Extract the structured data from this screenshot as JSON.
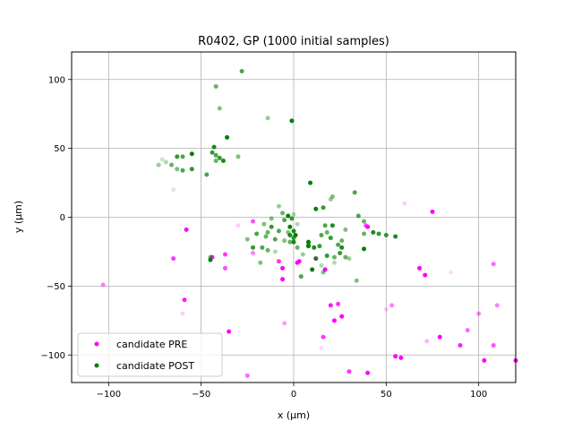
{
  "chart_data": {
    "type": "scatter",
    "title": "R0402, GP (1000 initial samples)",
    "xlabel": "x (µm)",
    "ylabel": "y (µm)",
    "xlim": [
      -120,
      120
    ],
    "ylim": [
      -120,
      120
    ],
    "xticks": [
      -100,
      -50,
      0,
      50,
      100
    ],
    "yticks": [
      -100,
      -50,
      0,
      50,
      100
    ],
    "xtick_labels": [
      "−100",
      "−50",
      "0",
      "50",
      "100"
    ],
    "ytick_labels": [
      "−100",
      "−50",
      "0",
      "50",
      "100"
    ],
    "grid": true,
    "legend": {
      "placement": "bottom-left"
    },
    "series": [
      {
        "name": "candidate PRE",
        "color": "#ff00ff",
        "points": [
          [
            -103,
            -49,
            0.5
          ],
          [
            -65,
            -30,
            0.8
          ],
          [
            -58,
            -9,
            1.0
          ],
          [
            -59,
            -60,
            0.9
          ],
          [
            -44,
            -29,
            0.9
          ],
          [
            -37,
            -27,
            0.8
          ],
          [
            -37,
            -37,
            0.7
          ],
          [
            -35,
            -83,
            1.0
          ],
          [
            -22,
            -3,
            0.7
          ],
          [
            -25,
            -115,
            0.6
          ],
          [
            -22,
            -26,
            0.5
          ],
          [
            -8,
            -32,
            0.8
          ],
          [
            -6,
            -45,
            1.0
          ],
          [
            -6,
            -37,
            1.0
          ],
          [
            -5,
            -77,
            0.4
          ],
          [
            2,
            -33,
            1.0
          ],
          [
            3,
            -32,
            1.0
          ],
          [
            12,
            -30,
            0.9
          ],
          [
            16,
            -87,
            0.8
          ],
          [
            17,
            -38,
            1.0
          ],
          [
            20,
            -64,
            0.9
          ],
          [
            22,
            -75,
            1.0
          ],
          [
            24,
            -63,
            0.8
          ],
          [
            26,
            -72,
            1.0
          ],
          [
            30,
            -112,
            0.8
          ],
          [
            39,
            -6,
            0.7
          ],
          [
            40,
            -7,
            1.0
          ],
          [
            40,
            -113,
            1.0
          ],
          [
            53,
            -64,
            0.5
          ],
          [
            55,
            -101,
            1.0
          ],
          [
            58,
            -102,
            1.0
          ],
          [
            68,
            -37,
            1.0
          ],
          [
            71,
            -42,
            1.0
          ],
          [
            72,
            -90,
            0.3
          ],
          [
            75,
            4,
            1.0
          ],
          [
            79,
            -87,
            1.0
          ],
          [
            90,
            -93,
            0.9
          ],
          [
            94,
            -82,
            0.6
          ],
          [
            100,
            -70,
            0.5
          ],
          [
            103,
            -104,
            1.0
          ],
          [
            108,
            -34,
            0.6
          ],
          [
            108,
            -93,
            0.7
          ],
          [
            110,
            -64,
            0.5
          ],
          [
            120,
            -104,
            1.0
          ],
          [
            -30,
            -6,
            0.2
          ],
          [
            50,
            -67,
            0.2
          ],
          [
            60,
            10,
            0.2
          ],
          [
            -60,
            -70,
            0.2
          ],
          [
            85,
            -40,
            0.15
          ],
          [
            15,
            -95,
            0.15
          ]
        ]
      },
      {
        "name": "candidate POST",
        "color": "#008000",
        "points": [
          [
            -28,
            106,
            0.7
          ],
          [
            -42,
            95,
            0.6
          ],
          [
            -40,
            79,
            0.5
          ],
          [
            -14,
            72,
            0.4
          ],
          [
            -1,
            70,
            1.0
          ],
          [
            -36,
            58,
            1.0
          ],
          [
            -43,
            51,
            0.9
          ],
          [
            -44,
            47,
            0.8
          ],
          [
            -42,
            45,
            0.7
          ],
          [
            -40,
            43,
            0.8
          ],
          [
            -38,
            41,
            0.9
          ],
          [
            -42,
            41,
            0.6
          ],
          [
            -55,
            46,
            1.0
          ],
          [
            -63,
            44,
            0.8
          ],
          [
            -60,
            44,
            0.7
          ],
          [
            -66,
            38,
            0.6
          ],
          [
            -63,
            35,
            0.5
          ],
          [
            -60,
            34,
            0.7
          ],
          [
            -55,
            35,
            0.8
          ],
          [
            -47,
            31,
            0.7
          ],
          [
            -30,
            44,
            0.5
          ],
          [
            -71,
            42,
            0.2
          ],
          [
            -73,
            38,
            0.4
          ],
          [
            -69,
            40,
            0.3
          ],
          [
            -45,
            -29,
            0.6
          ],
          [
            -45,
            -31,
            1.0
          ],
          [
            9,
            25,
            1.0
          ],
          [
            33,
            18,
            0.7
          ],
          [
            21,
            15,
            0.5
          ],
          [
            20,
            13,
            0.4
          ],
          [
            12,
            6,
            1.0
          ],
          [
            16,
            7,
            0.8
          ],
          [
            -8,
            8,
            0.4
          ],
          [
            -6,
            3,
            0.6
          ],
          [
            -3,
            1,
            1.0
          ],
          [
            -1,
            -1,
            0.8
          ],
          [
            -12,
            -1,
            0.5
          ],
          [
            -5,
            -2,
            0.7
          ],
          [
            -16,
            -5,
            0.5
          ],
          [
            -12,
            -7,
            0.8
          ],
          [
            -14,
            -11,
            0.6
          ],
          [
            -8,
            -10,
            0.7
          ],
          [
            -2,
            -7,
            1.0
          ],
          [
            0,
            -10,
            0.9
          ],
          [
            0,
            -15,
            0.8
          ],
          [
            1,
            -13,
            1.0
          ],
          [
            0,
            -18,
            0.9
          ],
          [
            -2,
            -18,
            0.6
          ],
          [
            2,
            -22,
            0.6
          ],
          [
            -5,
            -17,
            0.5
          ],
          [
            -10,
            -16,
            0.7
          ],
          [
            -15,
            -14,
            0.6
          ],
          [
            -20,
            -12,
            0.7
          ],
          [
            -17,
            -22,
            0.7
          ],
          [
            -22,
            -22,
            0.8
          ],
          [
            -14,
            -24,
            0.6
          ],
          [
            -18,
            -33,
            0.5
          ],
          [
            8,
            -18,
            1.0
          ],
          [
            8,
            -21,
            1.0
          ],
          [
            11,
            -22,
            0.9
          ],
          [
            14,
            -21,
            0.8
          ],
          [
            15,
            -13,
            0.7
          ],
          [
            17,
            -6,
            0.7
          ],
          [
            18,
            -11,
            0.6
          ],
          [
            20,
            -15,
            0.8
          ],
          [
            21,
            -6,
            0.9
          ],
          [
            24,
            -20,
            0.7
          ],
          [
            26,
            -17,
            0.6
          ],
          [
            28,
            -9,
            0.5
          ],
          [
            35,
            1,
            0.7
          ],
          [
            38,
            -3,
            0.6
          ],
          [
            38,
            -12,
            0.6
          ],
          [
            38,
            -23,
            1.0
          ],
          [
            43,
            -11,
            0.9
          ],
          [
            46,
            -12,
            0.8
          ],
          [
            50,
            -13,
            0.8
          ],
          [
            55,
            -14,
            0.9
          ],
          [
            10,
            -38,
            1.0
          ],
          [
            4,
            -43,
            0.7
          ],
          [
            12,
            -30,
            0.8
          ],
          [
            16,
            -40,
            0.5
          ],
          [
            18,
            -28,
            0.8
          ],
          [
            22,
            -29,
            0.6
          ],
          [
            25,
            -26,
            0.8
          ],
          [
            28,
            -29,
            0.6
          ],
          [
            34,
            -46,
            0.5
          ],
          [
            8,
            -20,
            0.6
          ],
          [
            5,
            -27,
            0.4
          ],
          [
            -25,
            -16,
            0.5
          ],
          [
            30,
            -30,
            0.4
          ],
          [
            -10,
            -25,
            0.3
          ],
          [
            0,
            2,
            0.3
          ],
          [
            22,
            -33,
            0.3
          ],
          [
            26,
            -22,
            0.9
          ],
          [
            2,
            -5,
            0.3
          ],
          [
            -2,
            -13,
            0.9
          ],
          [
            -3,
            -11,
            0.5
          ],
          [
            15,
            -35,
            0.3
          ],
          [
            -65,
            20,
            0.15
          ]
        ]
      }
    ]
  }
}
